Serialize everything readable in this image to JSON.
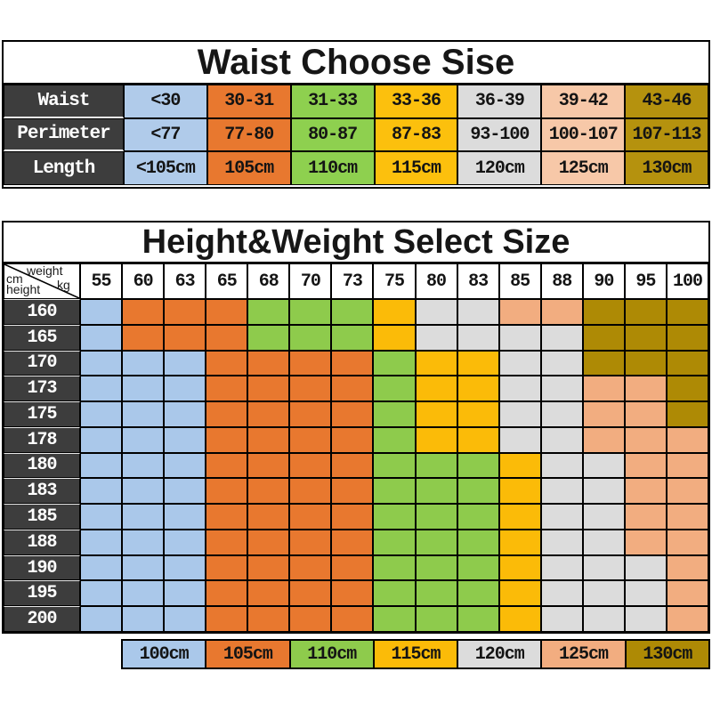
{
  "waist_table": {
    "title": "Waist Choose Sise",
    "column_colors": [
      "#b0cbea",
      "#e8782f",
      "#8ed04f",
      "#fcc00d",
      "#dcdcdc",
      "#f7c8a8",
      "#b5920e"
    ],
    "rows": [
      {
        "label": "Waist",
        "values": [
          "<30",
          "30-31",
          "31-33",
          "33-36",
          "36-39",
          "39-42",
          "43-46"
        ]
      },
      {
        "label": "Perimeter",
        "values": [
          "<77",
          "77-80",
          "80-87",
          "87-83",
          "93-100",
          "100-107",
          "107-113"
        ]
      },
      {
        "label": "Length",
        "values": [
          "<105cm",
          "105cm",
          "110cm",
          "115cm",
          "120cm",
          "125cm",
          "130cm"
        ]
      }
    ]
  },
  "size_table": {
    "title": "Height&Weight Select Size",
    "corner": {
      "weight": "weight",
      "kg": "kg",
      "cm": "cm",
      "height": "height"
    },
    "weights": [
      "55",
      "60",
      "63",
      "65",
      "68",
      "70",
      "73",
      "75",
      "80",
      "83",
      "85",
      "88",
      "90",
      "95",
      "100"
    ],
    "heights": [
      "160",
      "165",
      "170",
      "173",
      "175",
      "178",
      "180",
      "183",
      "185",
      "188",
      "190",
      "195",
      "200"
    ],
    "matrix": [
      [
        "100",
        "105",
        "105",
        "105",
        "110",
        "110",
        "110",
        "115",
        "120",
        "120",
        "125",
        "125",
        "130",
        "130",
        "130"
      ],
      [
        "100",
        "105",
        "105",
        "105",
        "110",
        "110",
        "110",
        "115",
        "120",
        "120",
        "120",
        "120",
        "130",
        "130",
        "130"
      ],
      [
        "100",
        "100",
        "100",
        "105",
        "105",
        "105",
        "105",
        "110",
        "115",
        "115",
        "120",
        "120",
        "130",
        "130",
        "130"
      ],
      [
        "100",
        "100",
        "100",
        "105",
        "105",
        "105",
        "105",
        "110",
        "115",
        "115",
        "120",
        "120",
        "125",
        "125",
        "130"
      ],
      [
        "100",
        "100",
        "100",
        "105",
        "105",
        "105",
        "105",
        "110",
        "115",
        "115",
        "120",
        "120",
        "125",
        "125",
        "130"
      ],
      [
        "100",
        "100",
        "100",
        "105",
        "105",
        "105",
        "105",
        "110",
        "115",
        "115",
        "120",
        "120",
        "125",
        "125",
        "125"
      ],
      [
        "100",
        "100",
        "100",
        "105",
        "105",
        "105",
        "105",
        "110",
        "110",
        "110",
        "115",
        "120",
        "120",
        "125",
        "125"
      ],
      [
        "100",
        "100",
        "100",
        "105",
        "105",
        "105",
        "105",
        "110",
        "110",
        "110",
        "115",
        "120",
        "120",
        "125",
        "125"
      ],
      [
        "100",
        "100",
        "100",
        "105",
        "105",
        "105",
        "105",
        "110",
        "110",
        "110",
        "115",
        "120",
        "120",
        "125",
        "125"
      ],
      [
        "100",
        "100",
        "100",
        "105",
        "105",
        "105",
        "105",
        "110",
        "110",
        "110",
        "115",
        "120",
        "120",
        "125",
        "125"
      ],
      [
        "100",
        "100",
        "100",
        "105",
        "105",
        "105",
        "105",
        "110",
        "110",
        "110",
        "115",
        "120",
        "120",
        "120",
        "125"
      ],
      [
        "100",
        "100",
        "100",
        "105",
        "105",
        "105",
        "105",
        "110",
        "110",
        "110",
        "115",
        "120",
        "120",
        "120",
        "125"
      ],
      [
        "100",
        "100",
        "100",
        "105",
        "105",
        "105",
        "105",
        "110",
        "110",
        "110",
        "115",
        "120",
        "120",
        "120",
        "125"
      ]
    ]
  },
  "size_colors": {
    "100": "#aac8ea",
    "105": "#e8782f",
    "110": "#8ecb4c",
    "115": "#fbbb08",
    "120": "#dcdcdc",
    "125": "#f2ad80",
    "130": "#ae8a05"
  },
  "legend": {
    "items": [
      {
        "label": "100cm",
        "code": "100"
      },
      {
        "label": "105cm",
        "code": "105"
      },
      {
        "label": "110cm",
        "code": "110"
      },
      {
        "label": "115cm",
        "code": "115"
      },
      {
        "label": "120cm",
        "code": "120"
      },
      {
        "label": "125cm",
        "code": "125"
      },
      {
        "label": "130cm",
        "code": "130"
      }
    ]
  },
  "header_bg": "#3d3d3d"
}
